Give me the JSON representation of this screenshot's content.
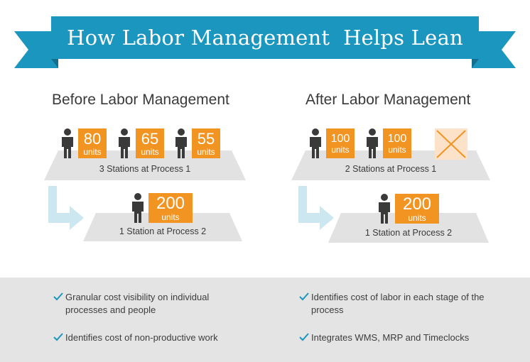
{
  "banner": {
    "title": "How Labor Management  Helps Lean",
    "color": "#1b96bf",
    "tail_color": "#136f8e"
  },
  "before": {
    "heading": "Before Labor Management",
    "process1": {
      "label": "3 Stations at Process 1",
      "stations": [
        {
          "value": "80",
          "unit": "units"
        },
        {
          "value": "65",
          "unit": "units"
        },
        {
          "value": "55",
          "unit": "units"
        }
      ]
    },
    "process2": {
      "label": "1 Station at Process 2",
      "value": "200",
      "unit": "units"
    }
  },
  "after": {
    "heading": "After Labor Management",
    "process1": {
      "label": "2 Stations at Process 1",
      "stations": [
        {
          "value": "100",
          "unit": "units"
        },
        {
          "value": "100",
          "unit": "units"
        }
      ]
    },
    "process2": {
      "label": "1 Station at Process 2",
      "value": "200",
      "unit": "units"
    }
  },
  "benefits": {
    "left": [
      "Granular cost visibility on individual processes and people",
      "Identifies cost of non-productive work"
    ],
    "right": [
      "Identifies cost of labor in each stage of the process",
      "Integrates WMS, MRP and Timeclocks"
    ]
  },
  "colors": {
    "accent": "#f29421",
    "platform": "#e2e2e2",
    "arrow": "#cde7f1",
    "footer": "#e4e4e4",
    "check": "#1b96bf"
  }
}
